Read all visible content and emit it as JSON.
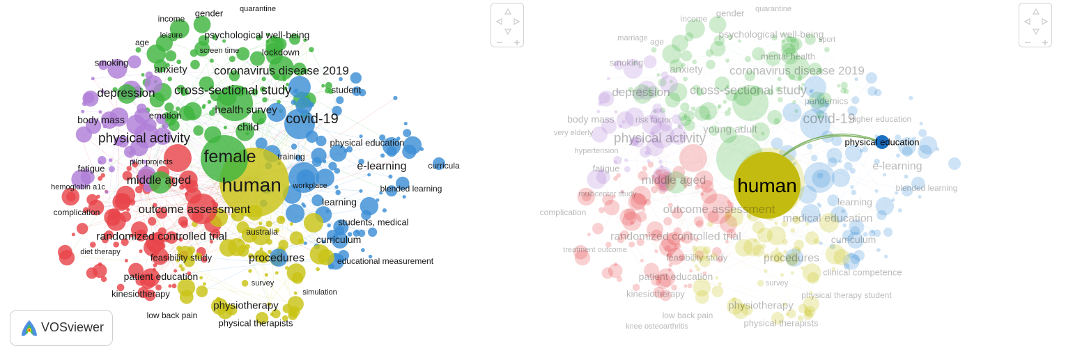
{
  "branding": {
    "logo_text": "VOSviewer"
  },
  "colors": {
    "cluster_red": "#e8464a",
    "cluster_green": "#3fb53f",
    "cluster_blue": "#3d8fd6",
    "cluster_yellow": "#c9c316",
    "cluster_purple": "#b07fd8",
    "highlight_blue": "#1a6fc0",
    "highlight_yellow": "#c4bb10"
  },
  "icons": [
    "navigation-pad-icon",
    "zoom-out-icon",
    "zoom-in-icon",
    "vosviewer-logo-icon"
  ],
  "left_map": {
    "labels": [
      {
        "text": "quarantine"
      },
      {
        "text": "income"
      },
      {
        "text": "gender"
      },
      {
        "text": "leisure"
      },
      {
        "text": "psychological well-being"
      },
      {
        "text": "age"
      },
      {
        "text": "screen time"
      },
      {
        "text": "lockdown"
      },
      {
        "text": "smoking"
      },
      {
        "text": "anxiety"
      },
      {
        "text": "coronavirus disease 2019"
      },
      {
        "text": "student"
      },
      {
        "text": "depression"
      },
      {
        "text": "cross-sectional study"
      },
      {
        "text": "health survey"
      },
      {
        "text": "emotion"
      },
      {
        "text": "body mass"
      },
      {
        "text": "child"
      },
      {
        "text": "covid-19"
      },
      {
        "text": "physical activity"
      },
      {
        "text": "physical education"
      },
      {
        "text": "female"
      },
      {
        "text": "training"
      },
      {
        "text": "pilot projects"
      },
      {
        "text": "e-learning"
      },
      {
        "text": "curricula"
      },
      {
        "text": "fatigue"
      },
      {
        "text": "middle aged"
      },
      {
        "text": "human"
      },
      {
        "text": "workplace"
      },
      {
        "text": "blended learning"
      },
      {
        "text": "hemoglobin a1c"
      },
      {
        "text": "learning"
      },
      {
        "text": "outcome assessment"
      },
      {
        "text": "complication"
      },
      {
        "text": "students, medical"
      },
      {
        "text": "australia"
      },
      {
        "text": "randomized controlled trial"
      },
      {
        "text": "curriculum"
      },
      {
        "text": "diet therapy"
      },
      {
        "text": "feasibility study"
      },
      {
        "text": "procedures"
      },
      {
        "text": "educational measurement"
      },
      {
        "text": "patient education"
      },
      {
        "text": "survey"
      },
      {
        "text": "kinesiotherapy"
      },
      {
        "text": "simulation"
      },
      {
        "text": "physiotherapy"
      },
      {
        "text": "low back pain"
      },
      {
        "text": "physical therapists"
      }
    ]
  },
  "right_map": {
    "highlighted": [
      {
        "text": "human"
      },
      {
        "text": "physical education"
      }
    ],
    "faded_labels": [
      {
        "text": "quarantine"
      },
      {
        "text": "income"
      },
      {
        "text": "gender"
      },
      {
        "text": "marriage"
      },
      {
        "text": "psychological well-being"
      },
      {
        "text": "age"
      },
      {
        "text": "sport"
      },
      {
        "text": "mental health"
      },
      {
        "text": "smoking"
      },
      {
        "text": "anxiety"
      },
      {
        "text": "coronavirus disease 2019"
      },
      {
        "text": "depression"
      },
      {
        "text": "cross-sectional study"
      },
      {
        "text": "pandemics"
      },
      {
        "text": "body mass"
      },
      {
        "text": "risk factor"
      },
      {
        "text": "covid-19"
      },
      {
        "text": "higher education"
      },
      {
        "text": "very elderly"
      },
      {
        "text": "young adult"
      },
      {
        "text": "physical activity"
      },
      {
        "text": "hypertension"
      },
      {
        "text": "fatigue"
      },
      {
        "text": "e-learning"
      },
      {
        "text": "middle aged"
      },
      {
        "text": "blended learning"
      },
      {
        "text": "multicenter study"
      },
      {
        "text": "learning"
      },
      {
        "text": "outcome assessment"
      },
      {
        "text": "complication"
      },
      {
        "text": "medical education"
      },
      {
        "text": "randomized controlled trial"
      },
      {
        "text": "curriculum"
      },
      {
        "text": "treatment outcome"
      },
      {
        "text": "feasibility study"
      },
      {
        "text": "procedures"
      },
      {
        "text": "clinical competence"
      },
      {
        "text": "patient education"
      },
      {
        "text": "survey"
      },
      {
        "text": "kinesiotherapy"
      },
      {
        "text": "physical therapy student"
      },
      {
        "text": "physiotherapy"
      },
      {
        "text": "low back pain"
      },
      {
        "text": "knee osteoarthritis"
      },
      {
        "text": "physical therapists"
      }
    ]
  }
}
